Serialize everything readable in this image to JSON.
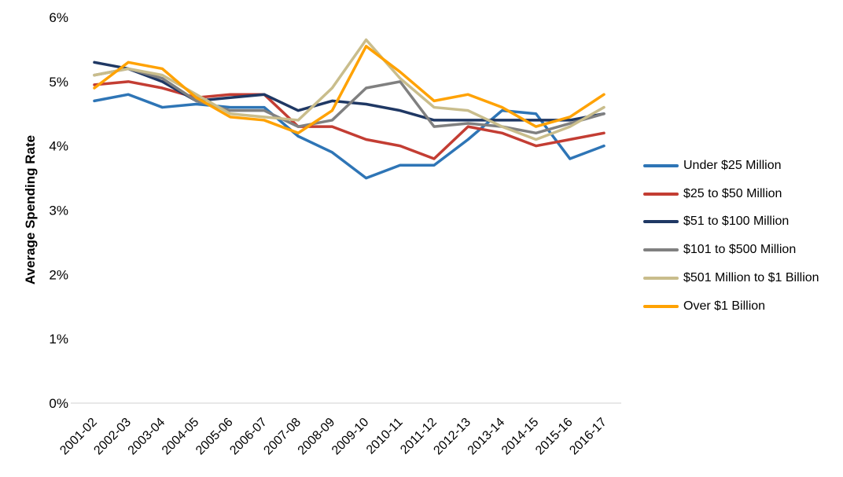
{
  "figure": {
    "background": "#FFFFFF",
    "axis_line_color": "#D9D9D9",
    "text_color": "#000000"
  },
  "chart_data": {
    "type": "line",
    "title": "",
    "xlabel": "",
    "ylabel": "Average Spending Rate",
    "ylim": [
      0,
      6
    ],
    "yticks": [
      0,
      1,
      2,
      3,
      4,
      5,
      6
    ],
    "ytick_labels": [
      "0%",
      "1%",
      "2%",
      "3%",
      "4%",
      "5%",
      "6%"
    ],
    "grid": false,
    "legend_position": "right",
    "line_width": 3.5,
    "categories": [
      "2001-02",
      "2002-03",
      "2003-04",
      "2004-05",
      "2005-06",
      "2006-07",
      "2007-08",
      "2008-09",
      "2009-10",
      "2010-11",
      "2011-12",
      "2012-13",
      "2013-14",
      "2014-15",
      "2015-16",
      "2016-17"
    ],
    "series": [
      {
        "name": "Under $25 Million",
        "color": "#2E75B6",
        "values": [
          4.7,
          4.8,
          4.6,
          4.65,
          4.6,
          4.6,
          4.15,
          3.9,
          3.5,
          3.7,
          3.7,
          4.1,
          4.55,
          4.5,
          3.8,
          4.0
        ]
      },
      {
        "name": "$25 to $50 Million",
        "color": "#C33D33",
        "values": [
          4.95,
          5.0,
          4.9,
          4.75,
          4.8,
          4.8,
          4.3,
          4.3,
          4.1,
          4.0,
          3.8,
          4.3,
          4.2,
          4.0,
          4.1,
          4.2
        ]
      },
      {
        "name": "$51 to $100 Million",
        "color": "#1F3864",
        "values": [
          5.3,
          5.2,
          5.0,
          4.7,
          4.75,
          4.8,
          4.55,
          4.7,
          4.65,
          4.55,
          4.4,
          4.4,
          4.4,
          4.4,
          4.4,
          4.5
        ]
      },
      {
        "name": "$101 to $500 Million",
        "color": "#808080",
        "values": [
          5.1,
          5.2,
          5.05,
          4.7,
          4.55,
          4.55,
          4.3,
          4.4,
          4.9,
          5.0,
          4.3,
          4.35,
          4.3,
          4.2,
          4.35,
          4.5
        ]
      },
      {
        "name": "$501 Million to $1 Billion",
        "color": "#C9BD8C",
        "values": [
          5.1,
          5.2,
          5.1,
          4.8,
          4.5,
          4.45,
          4.4,
          4.9,
          5.65,
          5.05,
          4.6,
          4.55,
          4.3,
          4.1,
          4.3,
          4.6
        ]
      },
      {
        "name": "Over $1 Billion",
        "color": "#FFA203",
        "values": [
          4.9,
          5.3,
          5.2,
          4.75,
          4.45,
          4.4,
          4.2,
          4.55,
          5.55,
          5.15,
          4.7,
          4.8,
          4.6,
          4.3,
          4.45,
          4.8
        ]
      }
    ]
  }
}
